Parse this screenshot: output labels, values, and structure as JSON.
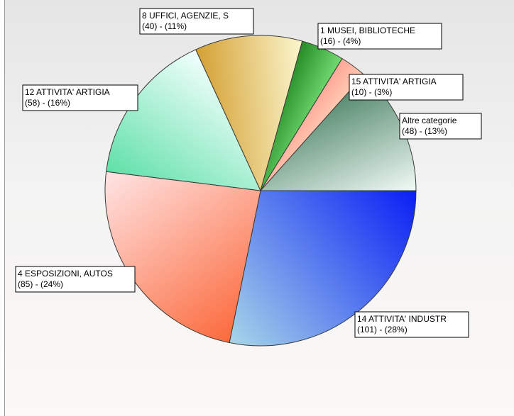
{
  "chart_data": {
    "type": "pie",
    "start_angle_deg": 0,
    "direction": "clockwise",
    "slices": [
      {
        "label_line1": "14 ATTIVITA' INDUSTR",
        "label_line2": "(101) - (28%)",
        "value": 101,
        "percent": 28,
        "color_dark": "#0a1ef5",
        "color_light": "#a6d6e8"
      },
      {
        "label_line1": "4 ESPOSIZIONI, AUTOS",
        "label_line2": "(85) - (24%)",
        "value": 85,
        "percent": 24,
        "color_dark": "#fb6a3c",
        "color_light": "#ffe4e4"
      },
      {
        "label_line1": "12 ATTIVITA' ARTIGIA",
        "label_line2": "(58) - (16%)",
        "value": 58,
        "percent": 16,
        "color_dark": "#5fe0a8",
        "color_light": "#f2fffd"
      },
      {
        "label_line1": "8 UFFICI, AGENZIE, S",
        "label_line2": "(40) - (11%)",
        "value": 40,
        "percent": 11,
        "color_dark": "#d4a033",
        "color_light": "#fbf7cf"
      },
      {
        "label_line1": "1 MUSEI, BIBLIOTECHE",
        "label_line2": "(16) - (4%)",
        "value": 16,
        "percent": 4,
        "color_dark": "#1a7f1a",
        "color_light": "#7de87d"
      },
      {
        "label_line1": "15 ATTIVITA' ARTIGIA",
        "label_line2": "(10) - (3%)",
        "value": 10,
        "percent": 3,
        "color_dark": "#ff8f86",
        "color_light": "#ffe3c4"
      },
      {
        "label_line1": "Altre categorie",
        "label_line2": "(48) - (13%)",
        "value": 48,
        "percent": 13,
        "color_dark": "#4a8266",
        "color_light": "#f2fbf6"
      }
    ]
  }
}
